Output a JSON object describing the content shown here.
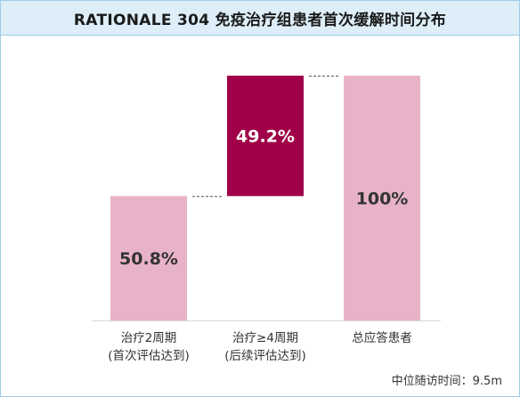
{
  "chart_data": {
    "type": "bar",
    "title": "RATIONALE 304 免疫治疗组患者首次缓解时间分布",
    "categories": [
      [
        "治疗2周期",
        "(首次评估达到)"
      ],
      [
        "治疗≥4周期",
        "(后续评估达到)"
      ],
      [
        "总应答患者"
      ]
    ],
    "values": [
      50.8,
      49.2,
      100
    ],
    "data_labels": [
      "50.8%",
      "49.2%",
      "100%"
    ],
    "colors": [
      "#e8b3c8",
      "#a00048",
      "#e8b3c8"
    ],
    "label_colors": [
      "#333333",
      "#ffffff",
      "#333333"
    ],
    "ylim": [
      0,
      100
    ],
    "grid": false,
    "annotation": "中位随访时间：9.5m"
  }
}
